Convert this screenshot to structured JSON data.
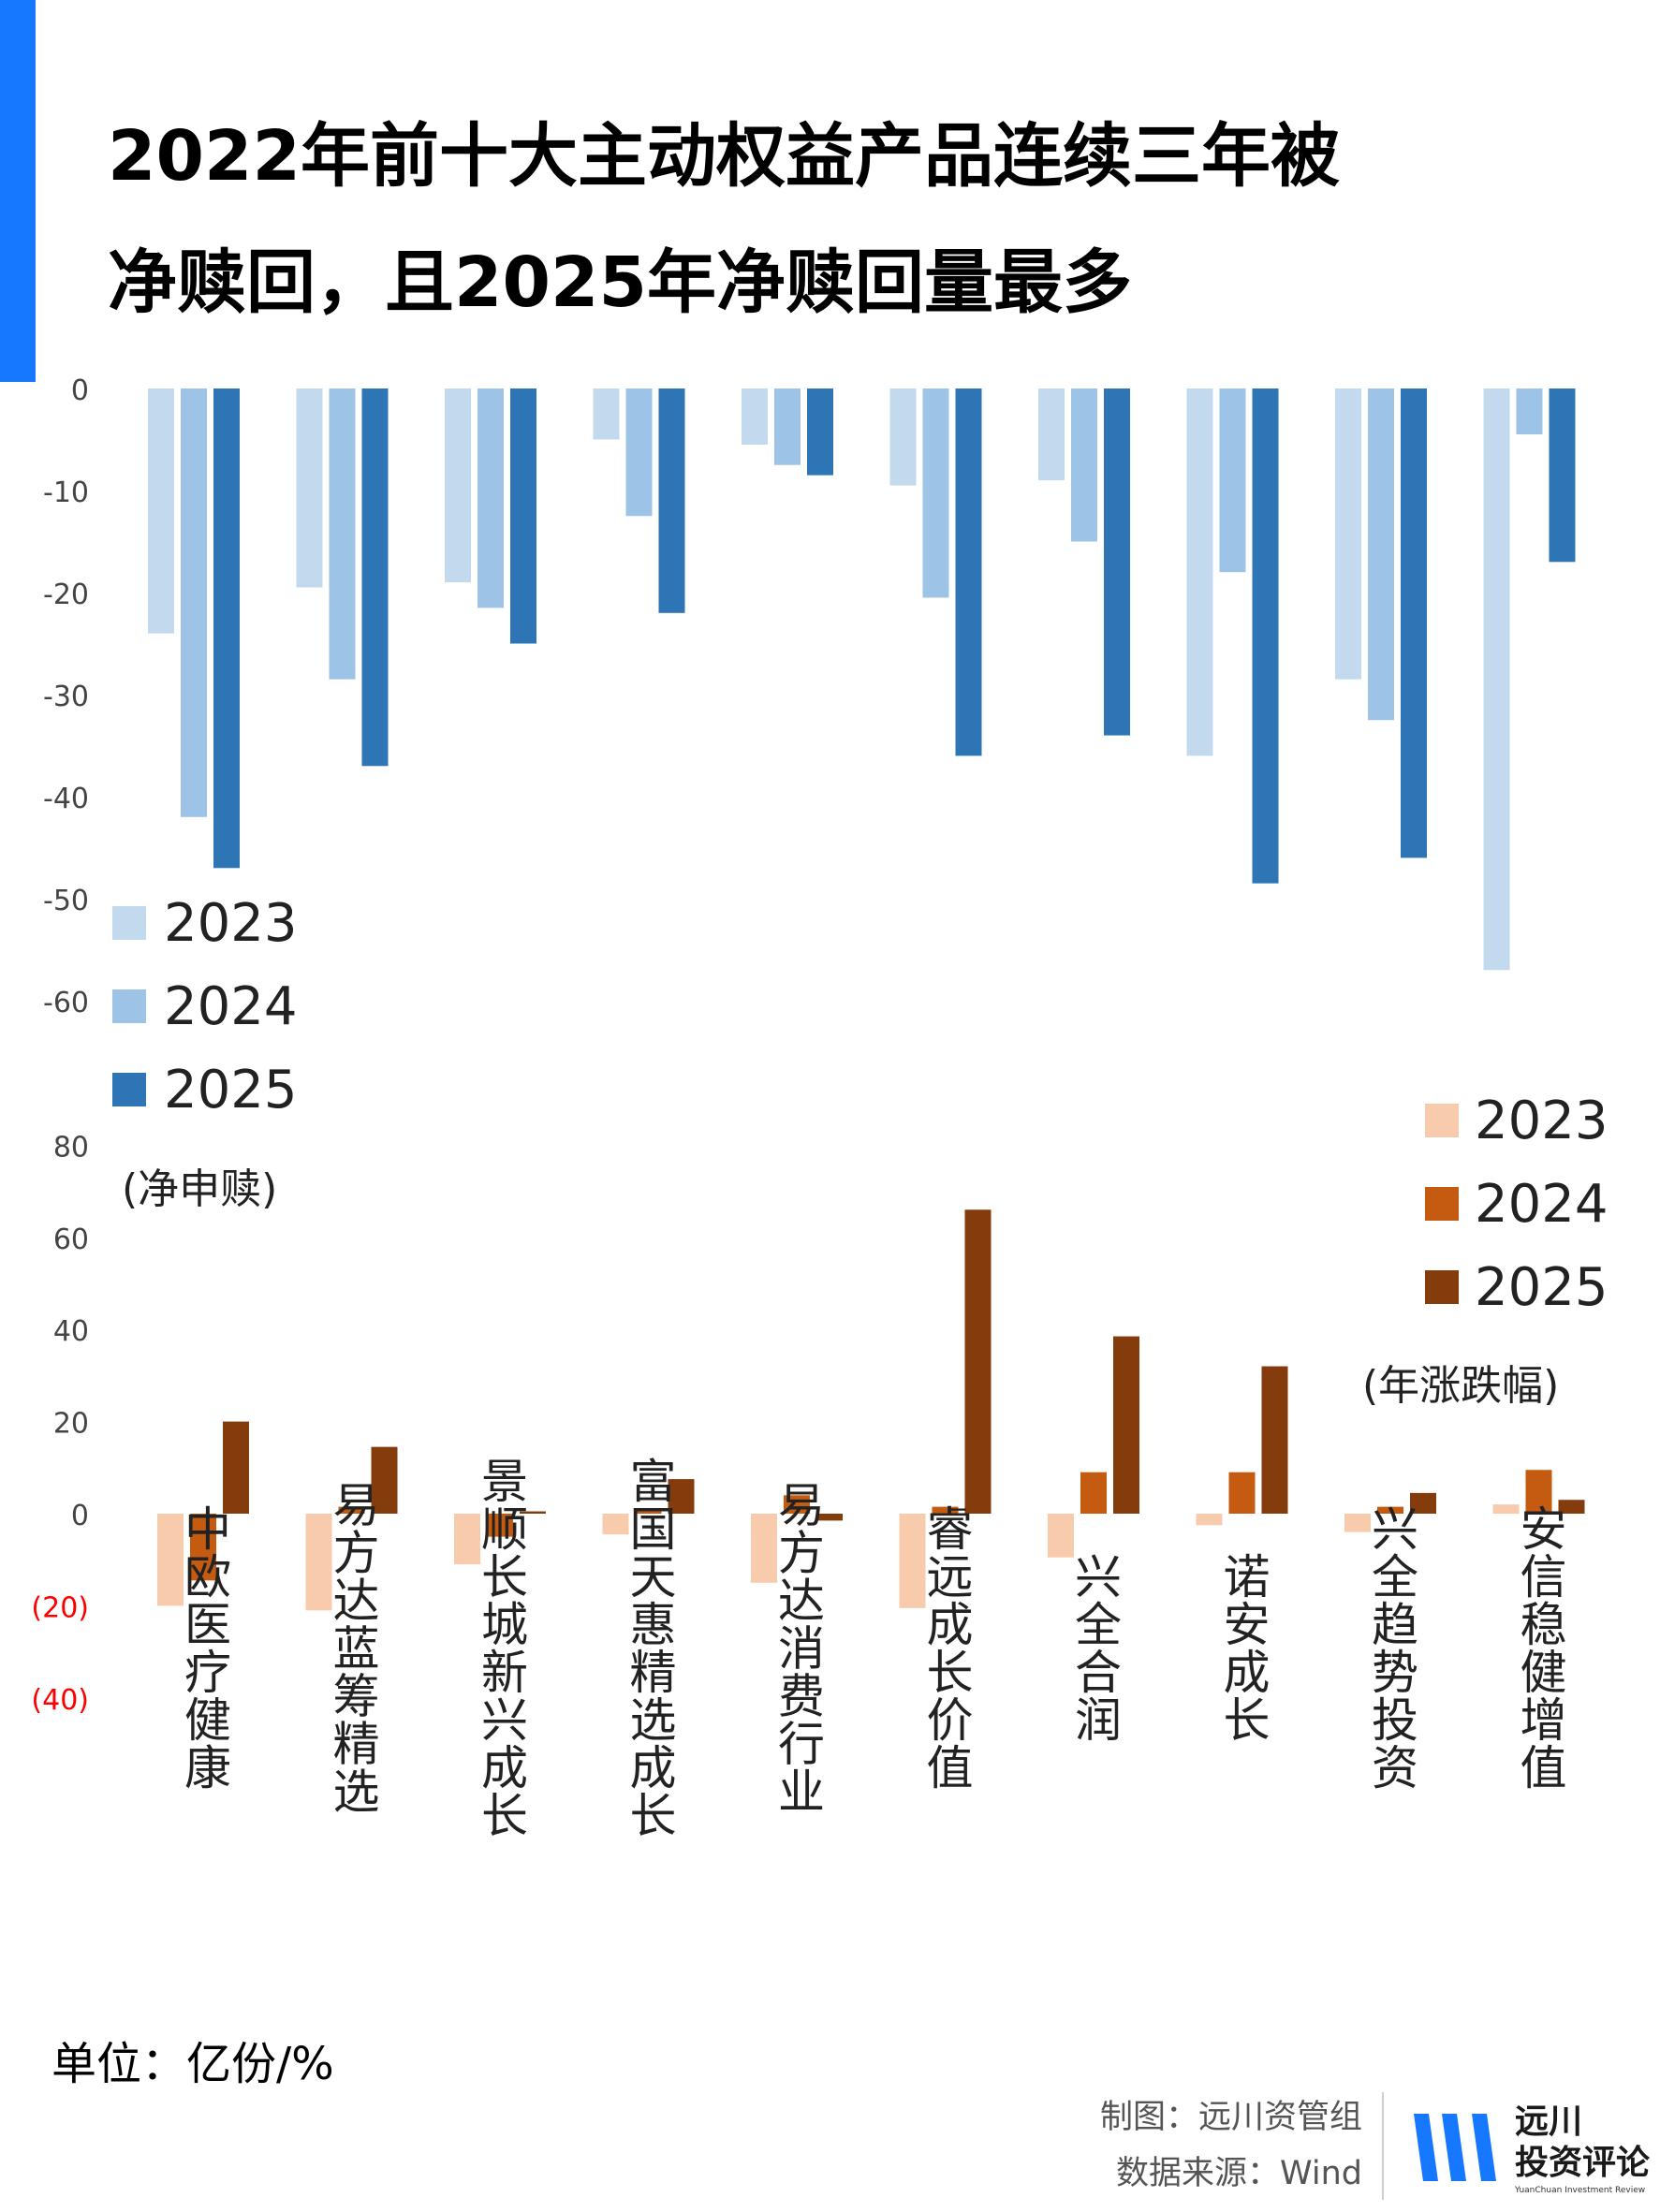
{
  "title_line1": "2022年前十大主动权益产品连续三年被",
  "title_line2": "净赎回，且2025年净赎回量最多",
  "unit_label": "单位：亿份/%",
  "credit_maker": "制图：远川资管组",
  "credit_source": "数据来源：Wind",
  "logo_text_line1": "远川",
  "logo_text_line2": "投资评论",
  "logo_sub": "YuanChuan Investment Review",
  "colors": {
    "accent": "#1677ff",
    "blue_2023": "#c3d9ee",
    "blue_2024": "#9dc3e6",
    "blue_2025": "#2e75b6",
    "orange_2023": "#f8cbad",
    "orange_2024": "#c55a11",
    "orange_2025": "#843c0c",
    "negative_tick": "#ff0000"
  },
  "chart_data": [
    {
      "type": "bar",
      "label": "净申赎",
      "categories": [
        "中欧医疗健康",
        "易方达蓝筹精选",
        "景顺长城新兴成长",
        "富国天惠精选成长",
        "易方达消费行业",
        "睿远成长价值",
        "兴全合润",
        "诺安成长",
        "兴全趋势投资",
        "安信稳健增值"
      ],
      "series": [
        {
          "name": "2023",
          "values": [
            -24,
            -19.5,
            -19,
            -5,
            -5.5,
            -9.5,
            -9,
            -36,
            -28.5,
            -57
          ]
        },
        {
          "name": "2024",
          "values": [
            -42,
            -28.5,
            -21.5,
            -12.5,
            -7.5,
            -20.5,
            -15,
            -18,
            -32.5,
            -4.5
          ]
        },
        {
          "name": "2025",
          "values": [
            -47,
            -37,
            -25,
            -22,
            -8.5,
            -36,
            -34,
            -48.5,
            -46,
            -17
          ]
        }
      ],
      "ylim": [
        -60,
        0
      ],
      "yticks": [
        "0",
        "-10",
        "-20",
        "-30",
        "-40",
        "-50",
        "-60"
      ],
      "legend_position": "bottom-left"
    },
    {
      "type": "bar",
      "label": "(年涨跌幅)",
      "label_corner": "(净申赎)",
      "categories": [
        "中欧医疗健康",
        "易方达蓝筹精选",
        "景顺长城新兴成长",
        "富国天惠精选成长",
        "易方达消费行业",
        "睿远成长价值",
        "兴全合润",
        "诺安成长",
        "兴全趋势投资",
        "安信稳健增值"
      ],
      "series": [
        {
          "name": "2023",
          "values": [
            -20,
            -21,
            -11,
            -4.5,
            -15,
            -20.5,
            -9.5,
            -2.5,
            -4,
            2
          ]
        },
        {
          "name": "2024",
          "values": [
            -14.5,
            1.5,
            -5,
            0.5,
            4,
            1.5,
            9,
            9,
            1.5,
            9.5
          ]
        },
        {
          "name": "2025",
          "values": [
            20,
            14.5,
            0.5,
            7.5,
            -1.5,
            66,
            38.5,
            32,
            4.5,
            3
          ]
        }
      ],
      "ylim": [
        -40,
        80
      ],
      "yticks": [
        "80",
        "60",
        "40",
        "20",
        "0",
        "(20)",
        "(40)"
      ],
      "legend_position": "top-right"
    }
  ]
}
